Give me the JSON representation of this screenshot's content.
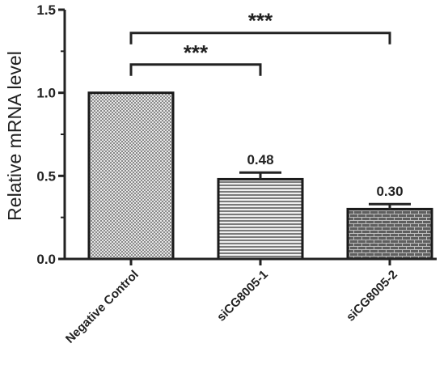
{
  "chart_data": {
    "type": "bar",
    "ylabel": "Relative mRNA level",
    "xlabel": "",
    "ylim": [
      0,
      1.5
    ],
    "yticks": [
      0.0,
      0.5,
      1.0,
      1.5
    ],
    "ytick_labels": [
      "0.0",
      "0.5",
      "1.0",
      "1.5"
    ],
    "categories": [
      "Negative Control",
      "siCG8005-1",
      "siCG8005-2"
    ],
    "values": [
      1.0,
      0.48,
      0.3
    ],
    "errors": [
      0.0,
      0.04,
      0.03
    ],
    "value_labels": [
      "",
      "0.48",
      "0.30"
    ],
    "significance": [
      {
        "from": 0,
        "to": 1,
        "label": "***",
        "y": 1.17
      },
      {
        "from": 0,
        "to": 2,
        "label": "***",
        "y": 1.36
      }
    ],
    "fill_patterns": [
      "crosshatch",
      "horizontal-lines",
      "brick"
    ],
    "bar_edge_color": "#1a1a1a",
    "bar_pattern_color": "#555555",
    "grid": false
  }
}
